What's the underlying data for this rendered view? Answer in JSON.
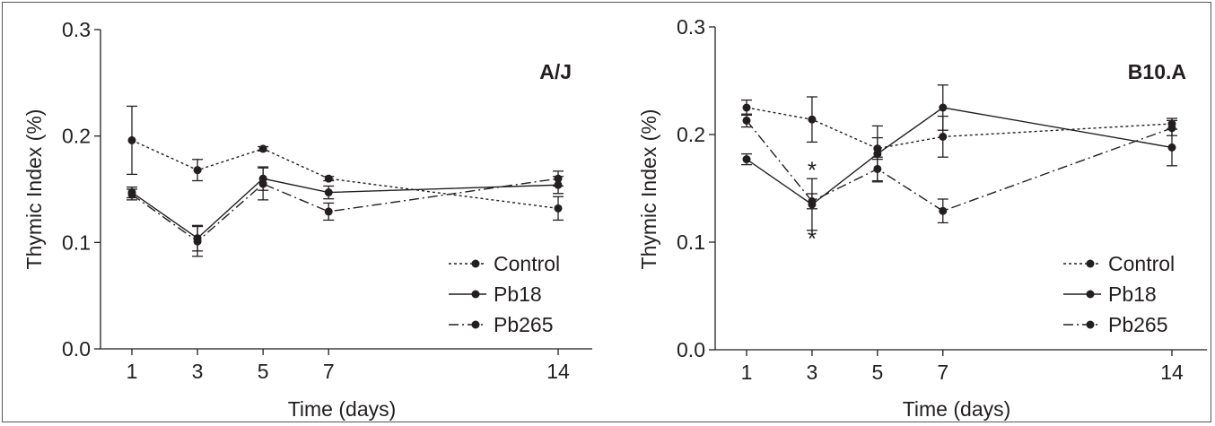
{
  "chart_data": [
    {
      "type": "line",
      "title": "A/J",
      "xlabel": "Time (days)",
      "ylabel": "Thymic Index (%)",
      "ylim": [
        0,
        0.3
      ],
      "yticks": [
        "0.0",
        "0.1",
        "0.2",
        "0.3"
      ],
      "x": [
        1,
        3,
        5,
        7,
        14
      ],
      "xticks": [
        "1",
        "3",
        "5",
        "7",
        "14"
      ],
      "legend_position": "bottom-right",
      "grid": false,
      "series": [
        {
          "name": "Control",
          "style": "dotted",
          "values": [
            0.196,
            0.168,
            0.188,
            0.16,
            0.132
          ],
          "errors": [
            0.032,
            0.01,
            0.002,
            0.002,
            0.011
          ]
        },
        {
          "name": "Pb18",
          "style": "solid",
          "values": [
            0.147,
            0.104,
            0.16,
            0.147,
            0.154
          ],
          "errors": [
            0.005,
            0.012,
            0.011,
            0.006,
            0.008
          ]
        },
        {
          "name": "Pb265",
          "style": "dashdot",
          "values": [
            0.145,
            0.101,
            0.155,
            0.129,
            0.16
          ],
          "errors": [
            0.005,
            0.014,
            0.015,
            0.008,
            0.007
          ]
        }
      ],
      "annotations": []
    },
    {
      "type": "line",
      "title": "B10.A",
      "xlabel": "Time (days)",
      "ylabel": "Thymic Index (%)",
      "ylim": [
        0,
        0.3
      ],
      "yticks": [
        "0.0",
        "0.1",
        "0.2",
        "0.3"
      ],
      "x": [
        1,
        3,
        5,
        7,
        14
      ],
      "xticks": [
        "1",
        "3",
        "5",
        "7",
        "14"
      ],
      "legend_position": "bottom-right",
      "grid": false,
      "series": [
        {
          "name": "Control",
          "style": "dotted",
          "values": [
            0.225,
            0.214,
            0.187,
            0.198,
            0.21
          ],
          "errors": [
            0.007,
            0.021,
            0.01,
            0.019,
            0.005
          ]
        },
        {
          "name": "Pb18",
          "style": "solid",
          "values": [
            0.177,
            0.135,
            0.182,
            0.225,
            0.188
          ],
          "errors": [
            0.005,
            0.024,
            0.026,
            0.021,
            0.017
          ]
        },
        {
          "name": "Pb265",
          "style": "dashdot",
          "values": [
            0.213,
            0.138,
            0.168,
            0.129,
            0.206
          ],
          "errors": [
            0.006,
            0.007,
            0.011,
            0.011,
            0.007
          ]
        }
      ],
      "annotations": [
        {
          "text": "*",
          "x": 3,
          "y": 0.168
        },
        {
          "text": "*",
          "x": 3,
          "y": 0.104
        }
      ]
    }
  ]
}
